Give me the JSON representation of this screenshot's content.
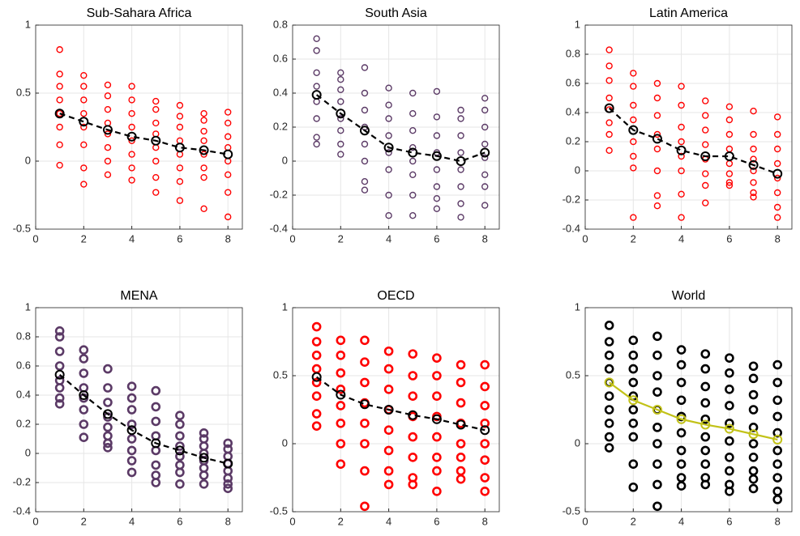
{
  "chart_data": [
    {
      "type": "scatter",
      "title": "Sub-Sahara Africa",
      "xlim": [
        0,
        8.6
      ],
      "xticks": [
        0,
        2,
        4,
        6,
        8
      ],
      "ylim": [
        -0.5,
        1
      ],
      "yticks": [
        -0.5,
        0,
        0.5,
        1
      ],
      "grid": true,
      "series": [
        {
          "type": "scatter",
          "color": "#ff0000",
          "x": [
            1,
            1,
            1,
            1,
            1,
            1,
            1,
            1,
            2,
            2,
            2,
            2,
            2,
            2,
            2,
            2,
            3,
            3,
            3,
            3,
            3,
            3,
            3,
            3,
            4,
            4,
            4,
            4,
            4,
            4,
            4,
            4,
            5,
            5,
            5,
            5,
            5,
            5,
            5,
            5,
            6,
            6,
            6,
            6,
            6,
            6,
            6,
            6,
            7,
            7,
            7,
            7,
            7,
            7,
            7,
            7,
            8,
            8,
            8,
            8,
            8,
            8,
            8,
            8
          ],
          "values": [
            0.82,
            0.64,
            0.55,
            0.45,
            0.35,
            0.25,
            0.12,
            -0.03,
            0.63,
            0.55,
            0.45,
            0.35,
            0.25,
            0.12,
            -0.05,
            -0.17,
            0.56,
            0.48,
            0.38,
            0.28,
            0.2,
            0.1,
            0,
            -0.1,
            0.55,
            0.45,
            0.35,
            0.25,
            0.15,
            0.05,
            -0.05,
            -0.14,
            0.44,
            0.38,
            0.28,
            0.2,
            0.1,
            0,
            -0.12,
            -0.23,
            0.41,
            0.33,
            0.25,
            0.15,
            0.05,
            -0.05,
            -0.15,
            -0.29,
            0.35,
            0.3,
            0.22,
            0.15,
            0.05,
            -0.05,
            -0.12,
            -0.35,
            0.36,
            0.28,
            0.18,
            0.1,
            0,
            -0.1,
            -0.23,
            -0.41
          ]
        },
        {
          "type": "line",
          "color": "#000000",
          "dashed": true,
          "x": [
            1,
            2,
            3,
            4,
            5,
            6,
            7,
            8
          ],
          "values": [
            0.35,
            0.29,
            0.23,
            0.18,
            0.15,
            0.1,
            0.08,
            0.05
          ]
        }
      ]
    },
    {
      "type": "scatter",
      "title": "South Asia",
      "xlim": [
        0,
        8.6
      ],
      "xticks": [
        0,
        2,
        4,
        6,
        8
      ],
      "ylim": [
        -0.4,
        0.8
      ],
      "yticks": [
        -0.4,
        -0.2,
        0,
        0.2,
        0.4,
        0.6,
        0.8
      ],
      "grid": true,
      "series": [
        {
          "type": "scatter",
          "color": "#5b3a66",
          "x": [
            1,
            1,
            1,
            1,
            1,
            1,
            1,
            1,
            2,
            2,
            2,
            2,
            2,
            2,
            2,
            2,
            3,
            3,
            3,
            3,
            3,
            3,
            3,
            3,
            4,
            4,
            4,
            4,
            4,
            4,
            4,
            4,
            5,
            5,
            5,
            5,
            5,
            5,
            5,
            5,
            6,
            6,
            6,
            6,
            6,
            6,
            6,
            6,
            7,
            7,
            7,
            7,
            7,
            7,
            7,
            7,
            8,
            8,
            8,
            8,
            8,
            8,
            8,
            8
          ],
          "values": [
            0.72,
            0.65,
            0.52,
            0.44,
            0.35,
            0.25,
            0.14,
            0.1,
            0.52,
            0.48,
            0.42,
            0.35,
            0.25,
            0.18,
            0.1,
            0.04,
            0.55,
            0.4,
            0.3,
            0.2,
            0.1,
            0,
            -0.12,
            -0.17,
            0.43,
            0.33,
            0.25,
            0.15,
            0.05,
            -0.05,
            -0.2,
            -0.32,
            0.4,
            0.28,
            0.18,
            0.08,
            0,
            -0.08,
            -0.2,
            -0.32,
            0.41,
            0.26,
            0.15,
            0.05,
            -0.05,
            -0.15,
            -0.22,
            -0.28,
            0.3,
            0.25,
            0.15,
            0.05,
            -0.05,
            -0.15,
            -0.25,
            -0.33,
            0.37,
            0.3,
            0.2,
            0.1,
            0.02,
            -0.08,
            -0.15,
            -0.26
          ]
        },
        {
          "type": "line",
          "color": "#000000",
          "dashed": true,
          "x": [
            1,
            2,
            3,
            4,
            5,
            6,
            7,
            8
          ],
          "values": [
            0.39,
            0.28,
            0.18,
            0.08,
            0.05,
            0.03,
            0,
            0.05
          ]
        }
      ]
    },
    {
      "type": "scatter",
      "title": "Latin America",
      "xlim": [
        0,
        8.6
      ],
      "xticks": [
        0,
        2,
        4,
        6,
        8
      ],
      "ylim": [
        -0.4,
        1
      ],
      "yticks": [
        -0.4,
        -0.2,
        0,
        0.2,
        0.4,
        0.6,
        0.8,
        1
      ],
      "grid": true,
      "series": [
        {
          "type": "scatter",
          "color": "#ff0000",
          "x": [
            1,
            1,
            1,
            1,
            1,
            1,
            1,
            1,
            2,
            2,
            2,
            2,
            2,
            2,
            2,
            2,
            3,
            3,
            3,
            3,
            3,
            3,
            3,
            3,
            4,
            4,
            4,
            4,
            4,
            4,
            4,
            4,
            5,
            5,
            5,
            5,
            5,
            5,
            5,
            5,
            6,
            6,
            6,
            6,
            6,
            6,
            6,
            6,
            7,
            7,
            7,
            7,
            7,
            7,
            7,
            7,
            8,
            8,
            8,
            8,
            8,
            8,
            8,
            8
          ],
          "values": [
            0.83,
            0.72,
            0.62,
            0.5,
            0.42,
            0.33,
            0.25,
            0.14,
            0.67,
            0.58,
            0.45,
            0.35,
            0.2,
            0.1,
            0.02,
            -0.32,
            0.6,
            0.5,
            0.38,
            0.25,
            0.15,
            0,
            -0.17,
            -0.24,
            0.58,
            0.45,
            0.3,
            0.2,
            0.1,
            0,
            -0.16,
            -0.32,
            0.48,
            0.38,
            0.28,
            0.18,
            0.08,
            -0.02,
            -0.1,
            -0.22,
            0.44,
            0.35,
            0.25,
            0.15,
            0.05,
            -0.02,
            -0.08,
            -0.1,
            0.41,
            0.25,
            0.15,
            0.08,
            0,
            -0.08,
            -0.15,
            -0.18,
            0.37,
            0.25,
            0.15,
            0.05,
            -0.05,
            -0.15,
            -0.25,
            -0.32
          ]
        },
        {
          "type": "line",
          "color": "#000000",
          "dashed": true,
          "x": [
            1,
            2,
            3,
            4,
            5,
            6,
            7,
            8
          ],
          "values": [
            0.43,
            0.28,
            0.22,
            0.14,
            0.1,
            0.1,
            0.04,
            -0.02
          ]
        }
      ]
    },
    {
      "type": "scatter",
      "title": "MENA",
      "xlim": [
        0,
        8.6
      ],
      "xticks": [
        0,
        2,
        4,
        6,
        8
      ],
      "ylim": [
        -0.4,
        1
      ],
      "yticks": [
        -0.4,
        -0.2,
        0,
        0.2,
        0.4,
        0.6,
        0.8,
        1
      ],
      "grid": true,
      "series": [
        {
          "type": "scatter",
          "color": "#5b3a66",
          "thick": true,
          "x": [
            1,
            1,
            1,
            1,
            1,
            1,
            1,
            1,
            2,
            2,
            2,
            2,
            2,
            2,
            2,
            2,
            3,
            3,
            3,
            3,
            3,
            3,
            3,
            3,
            4,
            4,
            4,
            4,
            4,
            4,
            4,
            4,
            5,
            5,
            5,
            5,
            5,
            5,
            5,
            5,
            6,
            6,
            6,
            6,
            6,
            6,
            6,
            6,
            7,
            7,
            7,
            7,
            7,
            7,
            7,
            7,
            8,
            8,
            8,
            8,
            8,
            8,
            8,
            8
          ],
          "values": [
            0.84,
            0.8,
            0.7,
            0.6,
            0.5,
            0.45,
            0.38,
            0.34,
            0.71,
            0.65,
            0.55,
            0.45,
            0.38,
            0.3,
            0.2,
            0.11,
            0.58,
            0.45,
            0.35,
            0.25,
            0.18,
            0.12,
            0.07,
            0.04,
            0.46,
            0.38,
            0.3,
            0.2,
            0.1,
            0.02,
            -0.05,
            -0.13,
            0.43,
            0.32,
            0.22,
            0.12,
            0.02,
            -0.08,
            -0.15,
            -0.2,
            0.26,
            0.2,
            0.12,
            0.05,
            -0.02,
            -0.08,
            -0.13,
            -0.21,
            0.14,
            0.1,
            0.05,
            0,
            -0.05,
            -0.1,
            -0.15,
            -0.21,
            0.07,
            0.03,
            -0.02,
            -0.07,
            -0.12,
            -0.17,
            -0.21,
            -0.24
          ]
        },
        {
          "type": "line",
          "color": "#000000",
          "dashed": true,
          "x": [
            1,
            2,
            3,
            4,
            5,
            6,
            7,
            8
          ],
          "values": [
            0.54,
            0.4,
            0.27,
            0.16,
            0.07,
            0.02,
            -0.03,
            -0.07
          ]
        }
      ]
    },
    {
      "type": "scatter",
      "title": "OECD",
      "xlim": [
        0,
        8.6
      ],
      "xticks": [
        0,
        2,
        4,
        6,
        8
      ],
      "ylim": [
        -0.5,
        1
      ],
      "yticks": [
        -0.5,
        0,
        0.5,
        1
      ],
      "grid": true,
      "series": [
        {
          "type": "scatter",
          "color": "#ff0000",
          "thick": true,
          "x": [
            1,
            1,
            1,
            1,
            1,
            1,
            1,
            1,
            2,
            2,
            2,
            2,
            2,
            2,
            2,
            2,
            3,
            3,
            3,
            3,
            3,
            3,
            3,
            3,
            4,
            4,
            4,
            4,
            4,
            4,
            4,
            4,
            5,
            5,
            5,
            5,
            5,
            5,
            5,
            5,
            6,
            6,
            6,
            6,
            6,
            6,
            6,
            6,
            7,
            7,
            7,
            7,
            7,
            7,
            7,
            7,
            8,
            8,
            8,
            8,
            8,
            8,
            8,
            8
          ],
          "values": [
            0.86,
            0.75,
            0.65,
            0.55,
            0.45,
            0.35,
            0.22,
            0.13,
            0.76,
            0.65,
            0.52,
            0.4,
            0.28,
            0.15,
            0,
            -0.15,
            0.76,
            0.6,
            0.45,
            0.3,
            0.15,
            0,
            -0.2,
            -0.46,
            0.68,
            0.55,
            0.4,
            0.25,
            0.1,
            -0.05,
            -0.2,
            -0.3,
            0.66,
            0.5,
            0.35,
            0.2,
            0.05,
            -0.1,
            -0.25,
            -0.3,
            0.63,
            0.5,
            0.35,
            0.2,
            0.05,
            -0.1,
            -0.2,
            -0.35,
            0.58,
            0.45,
            0.3,
            0.15,
            0,
            -0.1,
            -0.2,
            -0.26,
            0.58,
            0.42,
            0.28,
            0.15,
            0,
            -0.12,
            -0.25,
            -0.35
          ]
        },
        {
          "type": "line",
          "color": "#000000",
          "dashed": true,
          "x": [
            1,
            2,
            3,
            4,
            5,
            6,
            7,
            8
          ],
          "values": [
            0.49,
            0.36,
            0.29,
            0.25,
            0.21,
            0.18,
            0.14,
            0.1
          ]
        }
      ]
    },
    {
      "type": "scatter",
      "title": "World",
      "xlim": [
        0,
        8.6
      ],
      "xticks": [
        0,
        2,
        4,
        6,
        8
      ],
      "ylim": [
        -0.5,
        1
      ],
      "yticks": [
        -0.5,
        0,
        0.5,
        1
      ],
      "grid": true,
      "series": [
        {
          "type": "scatter",
          "color": "#000000",
          "thick": true,
          "x": [
            1,
            1,
            1,
            1,
            1,
            1,
            1,
            1,
            1,
            1,
            2,
            2,
            2,
            2,
            2,
            2,
            2,
            2,
            2,
            2,
            3,
            3,
            3,
            3,
            3,
            3,
            3,
            3,
            3,
            3,
            4,
            4,
            4,
            4,
            4,
            4,
            4,
            4,
            4,
            4,
            5,
            5,
            5,
            5,
            5,
            5,
            5,
            5,
            5,
            5,
            6,
            6,
            6,
            6,
            6,
            6,
            6,
            6,
            6,
            6,
            7,
            7,
            7,
            7,
            7,
            7,
            7,
            7,
            7,
            7,
            8,
            8,
            8,
            8,
            8,
            8,
            8,
            8,
            8,
            8
          ],
          "values": [
            0.87,
            0.75,
            0.65,
            0.55,
            0.45,
            0.35,
            0.25,
            0.15,
            0.05,
            -0.03,
            0.76,
            0.65,
            0.55,
            0.45,
            0.35,
            0.25,
            0.15,
            0.05,
            -0.15,
            -0.32,
            0.79,
            0.65,
            0.5,
            0.38,
            0.25,
            0.12,
            0,
            -0.15,
            -0.3,
            -0.46,
            0.69,
            0.58,
            0.45,
            0.32,
            0.2,
            0.08,
            -0.05,
            -0.15,
            -0.25,
            -0.31,
            0.66,
            0.55,
            0.42,
            0.3,
            0.18,
            0.05,
            -0.05,
            -0.15,
            -0.25,
            -0.3,
            0.63,
            0.52,
            0.4,
            0.28,
            0.15,
            0.02,
            -0.1,
            -0.2,
            -0.3,
            -0.35,
            0.57,
            0.48,
            0.36,
            0.25,
            0.12,
            0,
            -0.1,
            -0.2,
            -0.26,
            -0.33,
            0.58,
            0.45,
            0.32,
            0.2,
            0.08,
            -0.05,
            -0.15,
            -0.25,
            -0.35,
            -0.41
          ]
        },
        {
          "type": "line",
          "color": "#c2c218",
          "dashed": false,
          "x": [
            1,
            2,
            3,
            4,
            5,
            6,
            7,
            8
          ],
          "values": [
            0.45,
            0.32,
            0.25,
            0.18,
            0.14,
            0.11,
            0.07,
            0.03
          ]
        }
      ]
    }
  ]
}
